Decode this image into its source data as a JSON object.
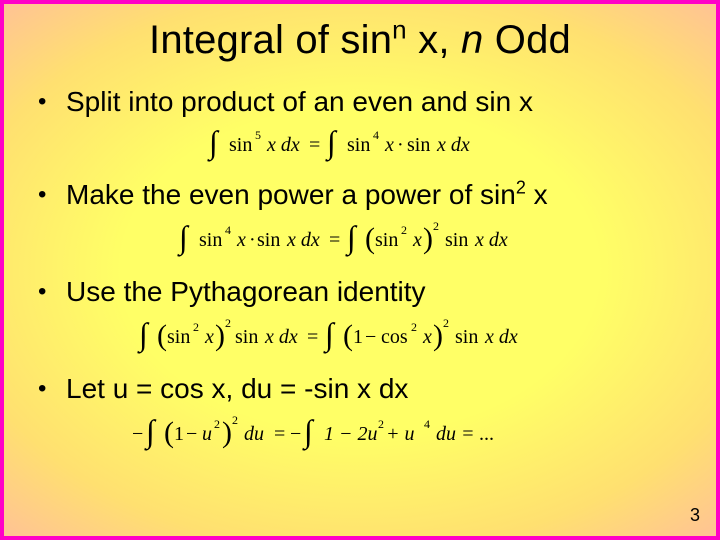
{
  "slide": {
    "title_pre": "Integral of sin",
    "title_sup": "n",
    "title_mid": " x, ",
    "title_ital": "n",
    "title_post": " Odd",
    "bullets": [
      "Split into product of an even and sin x",
      "Make the even power a power of sin",
      "Use the Pythagorean identity",
      "Let u = cos x, du = -sin x dx"
    ],
    "bullet2_sup": "2",
    "bullet2_tail": " x",
    "page_number": "3",
    "equations": {
      "eq1": {
        "lhs_pow": "5",
        "mid_pow": "4",
        "tail": "sin x dx"
      },
      "eq2": {
        "l_pow": "4",
        "inner_pow": "2",
        "outer_pow": "2",
        "tail": "sin x dx"
      },
      "eq3": {
        "inner_pow_l": "2",
        "outer_pow_l": "2",
        "mid_txt": "sin x dx",
        "inner_pow_r": "2",
        "outer_pow_r": "2",
        "tail": "sin x dx",
        "one_minus": "1",
        "cos_sym": "cos"
      },
      "eq4": {
        "inner_pow_l": "2",
        "outer_pow_l": "2",
        "du": "du",
        "poly": "1 − 2u",
        "poly_p1": "2",
        "plus_u": " + u",
        "poly_p2": "4",
        "trail": " du = ...",
        "minus": "−",
        "one_minus": "1",
        "u_sym": "u"
      }
    }
  },
  "style": {
    "title_fontsize": 40,
    "bullet_fontsize": 28,
    "eq_fontfamily": "Georgia, 'Times New Roman', serif",
    "eq_color": "#000000",
    "slide_width": 720,
    "slide_height": 540
  }
}
